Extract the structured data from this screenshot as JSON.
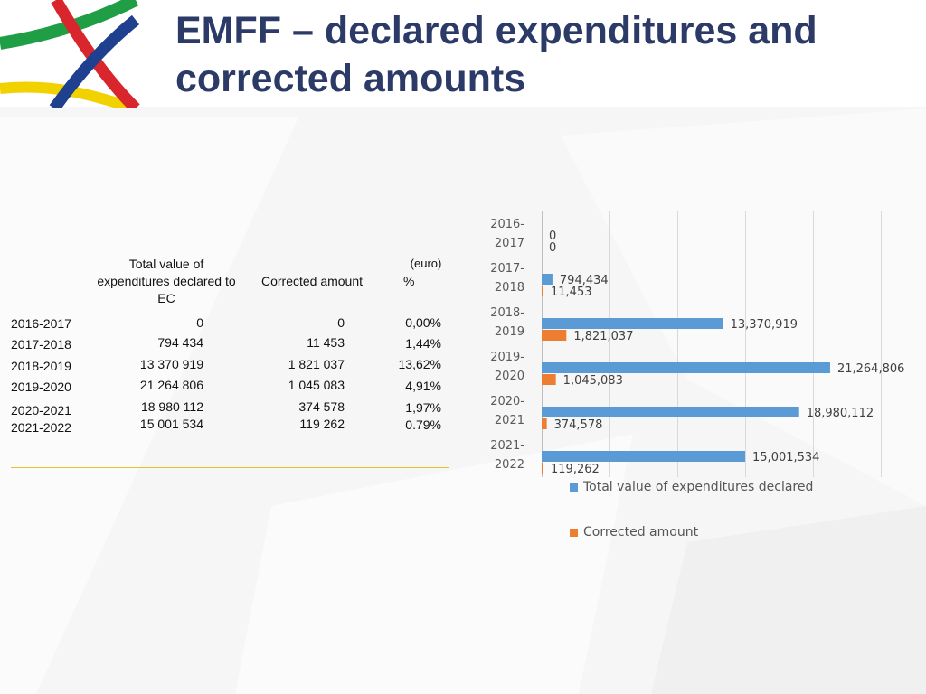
{
  "slide": {
    "title_lines": [
      "EMFF – declared expenditures and",
      "corrected amounts"
    ]
  },
  "table": {
    "headers": {
      "total": "Total value of expenditures declared to EC",
      "corrected": "Corrected amount",
      "unit": "(euro)",
      "percent": "%"
    },
    "rows": [
      {
        "year": "2016-2017",
        "total": "0",
        "corrected": "0",
        "percent": "0,00%"
      },
      {
        "year": "2017-2018",
        "total": "794 434",
        "corrected": "11 453",
        "percent": "1,44%"
      },
      {
        "year": "2018-2019",
        "total": "13 370 919",
        "corrected": "1 821 037",
        "percent": "13,62%"
      },
      {
        "year": "2019-2020",
        "total": "21 264 806",
        "corrected": "1 045 083",
        "percent": "4,91%"
      },
      {
        "year": "2020-2021",
        "total": "18 980 112",
        "corrected": "374 578",
        "percent": "1,97%"
      },
      {
        "year": "2021-2022",
        "total": "15 001 534",
        "corrected": "119 262",
        "percent": "0.79%"
      }
    ]
  },
  "chart_data": {
    "type": "bar",
    "orientation": "horizontal",
    "categories": [
      "2016-2017",
      "2017-2018",
      "2018-2019",
      "2019-2020",
      "2020-2021",
      "2021-2022"
    ],
    "category_labels": [
      [
        "2016-",
        "2017"
      ],
      [
        "2017-",
        "2018"
      ],
      [
        "2018-",
        "2019"
      ],
      [
        "2019-",
        "2020"
      ],
      [
        "2020-",
        "2021"
      ],
      [
        "2021-",
        "2022"
      ]
    ],
    "series": [
      {
        "name": "Total value of expenditures declared",
        "color": "#5b9bd5",
        "values": [
          0,
          794434,
          13370919,
          21264806,
          18980112,
          15001534
        ],
        "labels": [
          "0",
          "794,434",
          "13,370,919",
          "21,264,806",
          "18,980,112",
          "15,001,534"
        ]
      },
      {
        "name": "Corrected amount",
        "color": "#ed7d31",
        "values": [
          0,
          11453,
          1821037,
          1045083,
          374578,
          119262
        ],
        "labels": [
          "0",
          "11,453",
          "1,821,037",
          "1,045,083",
          "374,578",
          "119,262"
        ]
      }
    ],
    "xlim": [
      0,
      25000000
    ],
    "grid": true,
    "legend_position": "bottom"
  }
}
